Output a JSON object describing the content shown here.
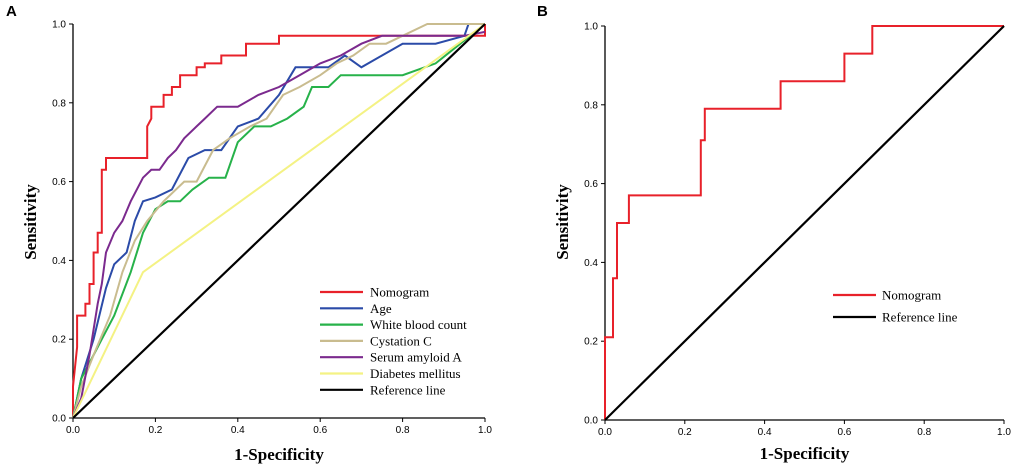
{
  "panels": [
    {
      "letter": "A"
    },
    {
      "letter": "B"
    }
  ],
  "chart_data": [
    {
      "type": "line",
      "panel": "A",
      "xlabel": "1-Specificity",
      "ylabel": "Sensitivity",
      "xlim": [
        0,
        1
      ],
      "ylim": [
        0,
        1
      ],
      "xticks": [
        "0.0",
        "0.2",
        "0.4",
        "0.6",
        "0.8",
        "1.0"
      ],
      "yticks": [
        "0.0",
        "0.2",
        "0.4",
        "0.6",
        "0.8",
        "1.0"
      ],
      "legend_position": "bottom-right",
      "series": [
        {
          "name": "Nomogram",
          "color": "#e8212a",
          "points": [
            [
              0,
              0
            ],
            [
              0,
              0.08
            ],
            [
              0.01,
              0.18
            ],
            [
              0.01,
              0.26
            ],
            [
              0.03,
              0.26
            ],
            [
              0.03,
              0.29
            ],
            [
              0.04,
              0.29
            ],
            [
              0.04,
              0.34
            ],
            [
              0.05,
              0.34
            ],
            [
              0.05,
              0.42
            ],
            [
              0.06,
              0.42
            ],
            [
              0.06,
              0.47
            ],
            [
              0.07,
              0.47
            ],
            [
              0.07,
              0.55
            ],
            [
              0.07,
              0.63
            ],
            [
              0.08,
              0.63
            ],
            [
              0.08,
              0.66
            ],
            [
              0.18,
              0.66
            ],
            [
              0.18,
              0.74
            ],
            [
              0.19,
              0.76
            ],
            [
              0.19,
              0.79
            ],
            [
              0.22,
              0.79
            ],
            [
              0.22,
              0.82
            ],
            [
              0.24,
              0.82
            ],
            [
              0.24,
              0.84
            ],
            [
              0.26,
              0.84
            ],
            [
              0.26,
              0.87
            ],
            [
              0.3,
              0.87
            ],
            [
              0.3,
              0.89
            ],
            [
              0.32,
              0.89
            ],
            [
              0.32,
              0.9
            ],
            [
              0.36,
              0.9
            ],
            [
              0.36,
              0.92
            ],
            [
              0.42,
              0.92
            ],
            [
              0.42,
              0.95
            ],
            [
              0.5,
              0.95
            ],
            [
              0.5,
              0.97
            ],
            [
              1,
              0.97
            ],
            [
              1,
              1
            ]
          ]
        },
        {
          "name": "Age",
          "color": "#2b4ba8",
          "points": [
            [
              0,
              0
            ],
            [
              0.02,
              0.1
            ],
            [
              0.05,
              0.2
            ],
            [
              0.08,
              0.33
            ],
            [
              0.1,
              0.39
            ],
            [
              0.13,
              0.42
            ],
            [
              0.15,
              0.5
            ],
            [
              0.17,
              0.55
            ],
            [
              0.2,
              0.56
            ],
            [
              0.24,
              0.58
            ],
            [
              0.28,
              0.66
            ],
            [
              0.32,
              0.68
            ],
            [
              0.36,
              0.68
            ],
            [
              0.4,
              0.74
            ],
            [
              0.45,
              0.76
            ],
            [
              0.5,
              0.82
            ],
            [
              0.54,
              0.89
            ],
            [
              0.58,
              0.89
            ],
            [
              0.62,
              0.89
            ],
            [
              0.66,
              0.92
            ],
            [
              0.7,
              0.89
            ],
            [
              0.75,
              0.92
            ],
            [
              0.8,
              0.95
            ],
            [
              0.88,
              0.95
            ],
            [
              0.95,
              0.97
            ],
            [
              0.96,
              1
            ],
            [
              1,
              1
            ]
          ]
        },
        {
          "name": "White blood count",
          "color": "#27b24a",
          "points": [
            [
              0,
              0
            ],
            [
              0.02,
              0.1
            ],
            [
              0.05,
              0.16
            ],
            [
              0.07,
              0.2
            ],
            [
              0.1,
              0.26
            ],
            [
              0.14,
              0.37
            ],
            [
              0.17,
              0.47
            ],
            [
              0.2,
              0.53
            ],
            [
              0.23,
              0.55
            ],
            [
              0.26,
              0.55
            ],
            [
              0.29,
              0.58
            ],
            [
              0.33,
              0.61
            ],
            [
              0.37,
              0.61
            ],
            [
              0.4,
              0.7
            ],
            [
              0.44,
              0.74
            ],
            [
              0.48,
              0.74
            ],
            [
              0.52,
              0.76
            ],
            [
              0.56,
              0.79
            ],
            [
              0.58,
              0.84
            ],
            [
              0.62,
              0.84
            ],
            [
              0.65,
              0.87
            ],
            [
              0.7,
              0.87
            ],
            [
              0.75,
              0.87
            ],
            [
              0.8,
              0.87
            ],
            [
              0.88,
              0.9
            ],
            [
              0.94,
              0.95
            ],
            [
              1,
              1
            ]
          ]
        },
        {
          "name": "Cystation C",
          "color": "#c9bc8f",
          "points": [
            [
              0,
              0
            ],
            [
              0.02,
              0.08
            ],
            [
              0.05,
              0.16
            ],
            [
              0.09,
              0.26
            ],
            [
              0.12,
              0.37
            ],
            [
              0.15,
              0.45
            ],
            [
              0.18,
              0.5
            ],
            [
              0.22,
              0.55
            ],
            [
              0.27,
              0.6
            ],
            [
              0.3,
              0.6
            ],
            [
              0.34,
              0.68
            ],
            [
              0.38,
              0.71
            ],
            [
              0.43,
              0.74
            ],
            [
              0.47,
              0.76
            ],
            [
              0.51,
              0.82
            ],
            [
              0.55,
              0.84
            ],
            [
              0.6,
              0.87
            ],
            [
              0.64,
              0.9
            ],
            [
              0.68,
              0.92
            ],
            [
              0.72,
              0.95
            ],
            [
              0.76,
              0.95
            ],
            [
              0.8,
              0.97
            ],
            [
              0.86,
              1
            ],
            [
              0.93,
              1
            ],
            [
              1,
              1
            ]
          ]
        },
        {
          "name": "Serum amyloid A",
          "color": "#7b2a8e",
          "points": [
            [
              0,
              0
            ],
            [
              0.02,
              0.05
            ],
            [
              0.04,
              0.16
            ],
            [
              0.06,
              0.29
            ],
            [
              0.07,
              0.34
            ],
            [
              0.08,
              0.42
            ],
            [
              0.1,
              0.47
            ],
            [
              0.12,
              0.5
            ],
            [
              0.14,
              0.55
            ],
            [
              0.17,
              0.61
            ],
            [
              0.19,
              0.63
            ],
            [
              0.21,
              0.63
            ],
            [
              0.23,
              0.66
            ],
            [
              0.25,
              0.68
            ],
            [
              0.27,
              0.71
            ],
            [
              0.3,
              0.74
            ],
            [
              0.32,
              0.76
            ],
            [
              0.35,
              0.79
            ],
            [
              0.4,
              0.79
            ],
            [
              0.45,
              0.82
            ],
            [
              0.5,
              0.84
            ],
            [
              0.55,
              0.87
            ],
            [
              0.6,
              0.9
            ],
            [
              0.65,
              0.92
            ],
            [
              0.7,
              0.95
            ],
            [
              0.75,
              0.97
            ],
            [
              0.8,
              0.97
            ],
            [
              0.9,
              0.97
            ],
            [
              0.95,
              0.97
            ],
            [
              1,
              0.98
            ]
          ]
        },
        {
          "name": "Diabetes mellitus",
          "color": "#f4f284",
          "points": [
            [
              0,
              0
            ],
            [
              0.17,
              0.37
            ],
            [
              1,
              1
            ]
          ]
        },
        {
          "name": "Reference line",
          "color": "#000000",
          "points": [
            [
              0,
              0
            ],
            [
              1,
              1
            ]
          ]
        }
      ]
    },
    {
      "type": "line",
      "panel": "B",
      "xlabel": "1-Specificity",
      "ylabel": "Sensitivity",
      "xlim": [
        0,
        1
      ],
      "ylim": [
        0,
        1
      ],
      "xticks": [
        "0.0",
        "0.2",
        "0.4",
        "0.6",
        "0.8",
        "1.0"
      ],
      "yticks": [
        "0.0",
        "0.2",
        "0.4",
        "0.6",
        "0.8",
        "1.0"
      ],
      "legend_position": "right",
      "series": [
        {
          "name": "Nomogram",
          "color": "#e8212a",
          "points": [
            [
              0,
              0
            ],
            [
              0,
              0.21
            ],
            [
              0.02,
              0.21
            ],
            [
              0.02,
              0.36
            ],
            [
              0.03,
              0.36
            ],
            [
              0.03,
              0.5
            ],
            [
              0.06,
              0.5
            ],
            [
              0.06,
              0.57
            ],
            [
              0.24,
              0.57
            ],
            [
              0.24,
              0.71
            ],
            [
              0.25,
              0.71
            ],
            [
              0.25,
              0.79
            ],
            [
              0.44,
              0.79
            ],
            [
              0.44,
              0.86
            ],
            [
              0.6,
              0.86
            ],
            [
              0.6,
              0.93
            ],
            [
              0.67,
              0.93
            ],
            [
              0.67,
              1
            ],
            [
              1,
              1
            ]
          ]
        },
        {
          "name": "Reference line",
          "color": "#000000",
          "points": [
            [
              0,
              0
            ],
            [
              1,
              1
            ]
          ]
        }
      ]
    }
  ]
}
